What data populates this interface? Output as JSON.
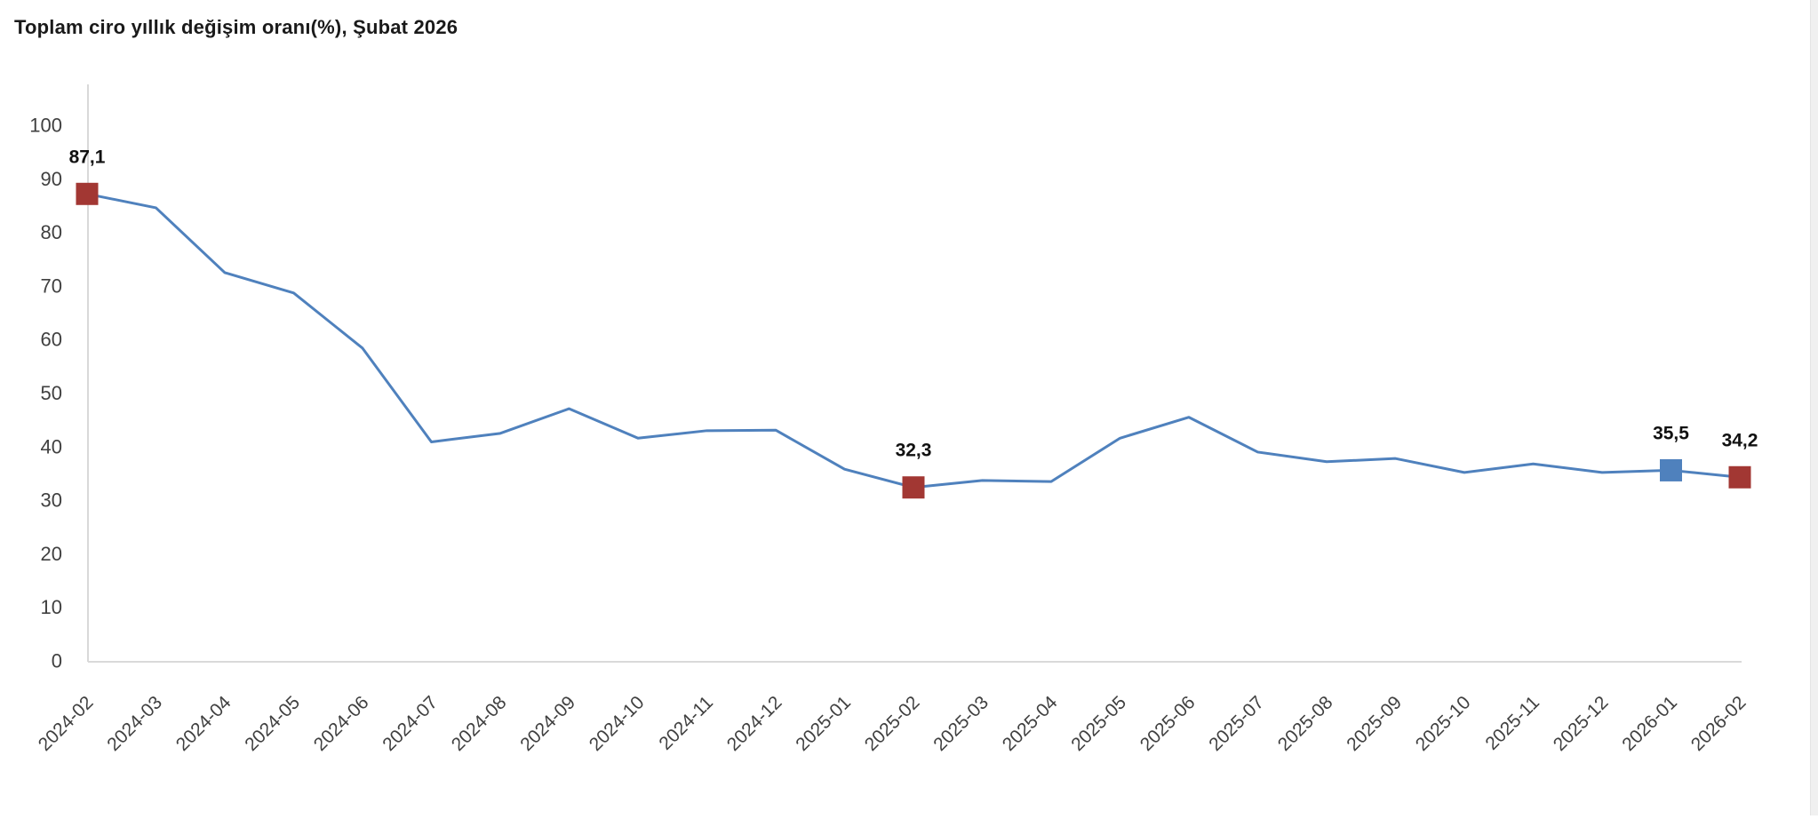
{
  "page_title": "Toplam ciro yıllık değişim oranı(%), Şubat 2026",
  "colors": {
    "line": "#4f81bd",
    "marker_red": "#a23733",
    "marker_blue": "#4f81bd",
    "axis": "#d9d9d9",
    "tick_text": "#404040",
    "point_label_text": "#111111",
    "title_text": "#1a1a1a",
    "scrollbar_track": "#f0f0f0"
  },
  "chart_data": {
    "type": "line",
    "title": "Toplam ciro yıllık değişim oranı(%), Şubat 2026",
    "xlabel": "",
    "ylabel": "",
    "ylim": [
      0,
      100
    ],
    "ytick_step": 10,
    "ytick_labels": [
      "0",
      "10",
      "20",
      "30",
      "40",
      "50",
      "60",
      "70",
      "80",
      "90",
      "100"
    ],
    "grid": false,
    "legend_position": "none",
    "line_color": "#4f81bd",
    "categories": [
      "2024-02",
      "2024-03",
      "2024-04",
      "2024-05",
      "2024-06",
      "2024-07",
      "2024-08",
      "2024-09",
      "2024-10",
      "2024-11",
      "2024-12",
      "2025-01",
      "2025-02",
      "2025-03",
      "2025-04",
      "2025-05",
      "2025-06",
      "2025-07",
      "2025-08",
      "2025-09",
      "2025-10",
      "2025-11",
      "2025-12",
      "2026-01",
      "2026-02"
    ],
    "values": [
      87.1,
      84.5,
      72.4,
      68.6,
      58.3,
      40.8,
      42.4,
      47.0,
      41.5,
      42.9,
      43.0,
      35.7,
      32.3,
      33.6,
      33.4,
      41.5,
      45.4,
      38.9,
      37.1,
      37.7,
      35.1,
      36.7,
      35.1,
      35.5,
      34.2
    ],
    "marked_points": [
      {
        "category": "2024-02",
        "index": 0,
        "value": 87.1,
        "label": "87,1",
        "marker_color": "#a23733"
      },
      {
        "category": "2025-02",
        "index": 12,
        "value": 32.3,
        "label": "32,3",
        "marker_color": "#a23733"
      },
      {
        "category": "2026-01",
        "index": 23,
        "value": 35.5,
        "label": "35,5",
        "marker_color": "#4f81bd"
      },
      {
        "category": "2026-02",
        "index": 24,
        "value": 34.2,
        "label": "34,2",
        "marker_color": "#a23733"
      }
    ]
  }
}
